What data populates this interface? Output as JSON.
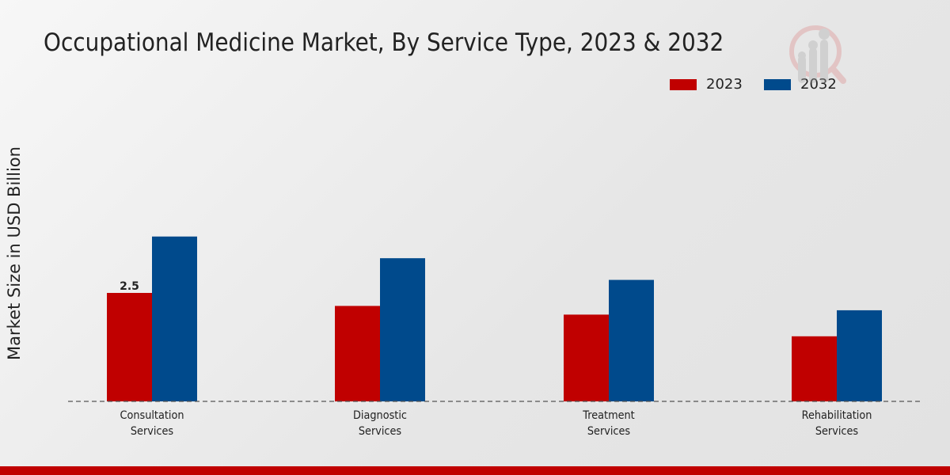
{
  "colors": {
    "2023": "#c00000",
    "2032": "#004a8c"
  },
  "chart_data": {
    "type": "bar",
    "title": "Occupational Medicine Market, By Service Type, 2023 & 2032",
    "ylabel": "Market Size in USD Billion",
    "xlabel": "",
    "categories": [
      "Consultation Services",
      "Diagnostic Services",
      "Treatment Services",
      "Rehabilitation Services"
    ],
    "category_lines": [
      [
        "Consultation",
        "Services"
      ],
      [
        "Diagnostic",
        "Services"
      ],
      [
        "Treatment",
        "Services"
      ],
      [
        "Rehabilitation",
        "Services"
      ]
    ],
    "series": [
      {
        "name": "2023",
        "values": [
          2.5,
          2.2,
          2.0,
          1.5
        ]
      },
      {
        "name": "2032",
        "values": [
          3.8,
          3.3,
          2.8,
          2.1
        ]
      }
    ],
    "data_labels": [
      {
        "series": "2023",
        "category": "Consultation Services",
        "text": "2.5"
      }
    ],
    "legend": "top-right",
    "grid": false
  }
}
